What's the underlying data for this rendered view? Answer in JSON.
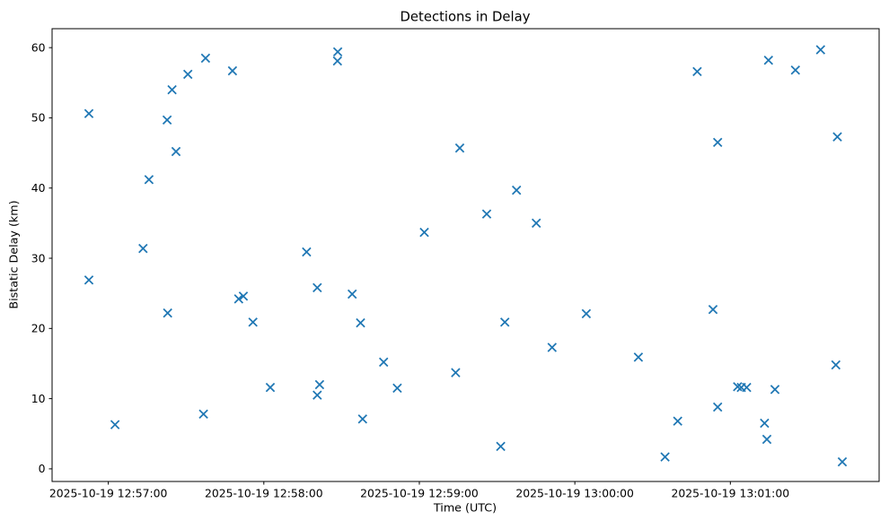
{
  "figure": {
    "background": "#ffffff"
  },
  "chart_data": {
    "type": "scatter",
    "title": "Detections in Delay",
    "xlabel": "Time (UTC)",
    "ylabel": "Bistatic Delay (km)",
    "date": "2025-10-19",
    "marker": "x",
    "marker_color": "#1f77b4",
    "axis_color": "#000000",
    "grid": false,
    "legend": false,
    "x_axis": {
      "tick_labels": [
        "2025-10-19 12:57:00",
        "2025-10-19 12:58:00",
        "2025-10-19 12:59:00",
        "2025-10-19 13:00:00",
        "2025-10-19 13:01:00"
      ],
      "tick_t_seconds": [
        0,
        60,
        120,
        180,
        240
      ],
      "range_t_seconds": [
        -21.7,
        297.4
      ]
    },
    "y_axis": {
      "tick_labels": [
        "0",
        "10",
        "20",
        "30",
        "40",
        "50",
        "60"
      ],
      "tick_values": [
        0,
        10,
        20,
        30,
        40,
        50,
        60
      ],
      "range": [
        -1.8,
        62.7
      ]
    },
    "points": [
      {
        "time": "12:56:52.5",
        "t_sec": -7.5,
        "delay_km": 50.6
      },
      {
        "time": "12:56:52.5",
        "t_sec": -7.5,
        "delay_km": 26.9
      },
      {
        "time": "12:57:02.6",
        "t_sec": 2.6,
        "delay_km": 6.3
      },
      {
        "time": "12:57:13.4",
        "t_sec": 13.4,
        "delay_km": 31.4
      },
      {
        "time": "12:57:15.7",
        "t_sec": 15.7,
        "delay_km": 41.2
      },
      {
        "time": "12:57:22.7",
        "t_sec": 22.7,
        "delay_km": 49.7
      },
      {
        "time": "12:57:22.9",
        "t_sec": 22.9,
        "delay_km": 22.2
      },
      {
        "time": "12:57:24.6",
        "t_sec": 24.6,
        "delay_km": 54.0
      },
      {
        "time": "12:57:26.1",
        "t_sec": 26.1,
        "delay_km": 45.2
      },
      {
        "time": "12:57:30.7",
        "t_sec": 30.7,
        "delay_km": 56.2
      },
      {
        "time": "12:57:36.7",
        "t_sec": 36.7,
        "delay_km": 7.8
      },
      {
        "time": "12:57:37.5",
        "t_sec": 37.5,
        "delay_km": 58.5
      },
      {
        "time": "12:57:47.9",
        "t_sec": 47.9,
        "delay_km": 56.7
      },
      {
        "time": "12:57:50.3",
        "t_sec": 50.3,
        "delay_km": 24.2
      },
      {
        "time": "12:57:52.1",
        "t_sec": 52.1,
        "delay_km": 24.6
      },
      {
        "time": "12:57:55.8",
        "t_sec": 55.8,
        "delay_km": 20.9
      },
      {
        "time": "12:58:02.5",
        "t_sec": 62.5,
        "delay_km": 11.6
      },
      {
        "time": "12:58:16.5",
        "t_sec": 76.5,
        "delay_km": 30.9
      },
      {
        "time": "12:58:20.6",
        "t_sec": 80.6,
        "delay_km": 25.8
      },
      {
        "time": "12:58:20.6",
        "t_sec": 80.6,
        "delay_km": 10.5
      },
      {
        "time": "12:58:21.5",
        "t_sec": 81.5,
        "delay_km": 12.0
      },
      {
        "time": "12:58:28.4",
        "t_sec": 88.4,
        "delay_km": 58.1
      },
      {
        "time": "12:58:28.5",
        "t_sec": 88.5,
        "delay_km": 59.4
      },
      {
        "time": "12:58:34.1",
        "t_sec": 94.1,
        "delay_km": 24.9
      },
      {
        "time": "12:58:37.3",
        "t_sec": 97.3,
        "delay_km": 20.8
      },
      {
        "time": "12:58:38.1",
        "t_sec": 98.1,
        "delay_km": 7.1
      },
      {
        "time": "12:58:46.2",
        "t_sec": 106.2,
        "delay_km": 15.2
      },
      {
        "time": "12:58:51.5",
        "t_sec": 111.5,
        "delay_km": 11.5
      },
      {
        "time": "12:59:01.9",
        "t_sec": 121.9,
        "delay_km": 33.7
      },
      {
        "time": "12:59:14.0",
        "t_sec": 134.0,
        "delay_km": 13.7
      },
      {
        "time": "12:59:15.6",
        "t_sec": 135.6,
        "delay_km": 45.7
      },
      {
        "time": "12:59:26.0",
        "t_sec": 146.0,
        "delay_km": 36.3
      },
      {
        "time": "12:59:31.4",
        "t_sec": 151.4,
        "delay_km": 3.2
      },
      {
        "time": "12:59:33.0",
        "t_sec": 153.0,
        "delay_km": 20.9
      },
      {
        "time": "12:59:37.5",
        "t_sec": 157.5,
        "delay_km": 39.7
      },
      {
        "time": "12:59:45.1",
        "t_sec": 165.1,
        "delay_km": 35.0
      },
      {
        "time": "12:59:51.2",
        "t_sec": 171.2,
        "delay_km": 17.3
      },
      {
        "time": "13:00:04.4",
        "t_sec": 184.4,
        "delay_km": 22.1
      },
      {
        "time": "13:00:24.5",
        "t_sec": 204.5,
        "delay_km": 15.9
      },
      {
        "time": "13:00:34.8",
        "t_sec": 214.8,
        "delay_km": 1.7
      },
      {
        "time": "13:00:39.7",
        "t_sec": 219.7,
        "delay_km": 6.8
      },
      {
        "time": "13:00:47.2",
        "t_sec": 227.2,
        "delay_km": 56.6
      },
      {
        "time": "13:00:53.3",
        "t_sec": 233.3,
        "delay_km": 22.7
      },
      {
        "time": "13:00:55.1",
        "t_sec": 235.1,
        "delay_km": 46.5
      },
      {
        "time": "13:00:55.1",
        "t_sec": 235.1,
        "delay_km": 8.8
      },
      {
        "time": "13:01:02.8",
        "t_sec": 242.8,
        "delay_km": 11.7
      },
      {
        "time": "13:01:04.2",
        "t_sec": 244.2,
        "delay_km": 11.6
      },
      {
        "time": "13:01:06.3",
        "t_sec": 246.3,
        "delay_km": 11.6
      },
      {
        "time": "13:01:13.2",
        "t_sec": 253.2,
        "delay_km": 6.5
      },
      {
        "time": "13:01:14.1",
        "t_sec": 254.1,
        "delay_km": 4.2
      },
      {
        "time": "13:01:14.7",
        "t_sec": 254.7,
        "delay_km": 58.2
      },
      {
        "time": "13:01:17.2",
        "t_sec": 257.2,
        "delay_km": 11.3
      },
      {
        "time": "13:01:25.1",
        "t_sec": 265.1,
        "delay_km": 56.8
      },
      {
        "time": "13:01:34.8",
        "t_sec": 274.8,
        "delay_km": 59.7
      },
      {
        "time": "13:01:40.7",
        "t_sec": 280.7,
        "delay_km": 14.8
      },
      {
        "time": "13:01:41.3",
        "t_sec": 281.3,
        "delay_km": 47.3
      },
      {
        "time": "13:01:43.2",
        "t_sec": 283.2,
        "delay_km": 1.0
      }
    ]
  }
}
